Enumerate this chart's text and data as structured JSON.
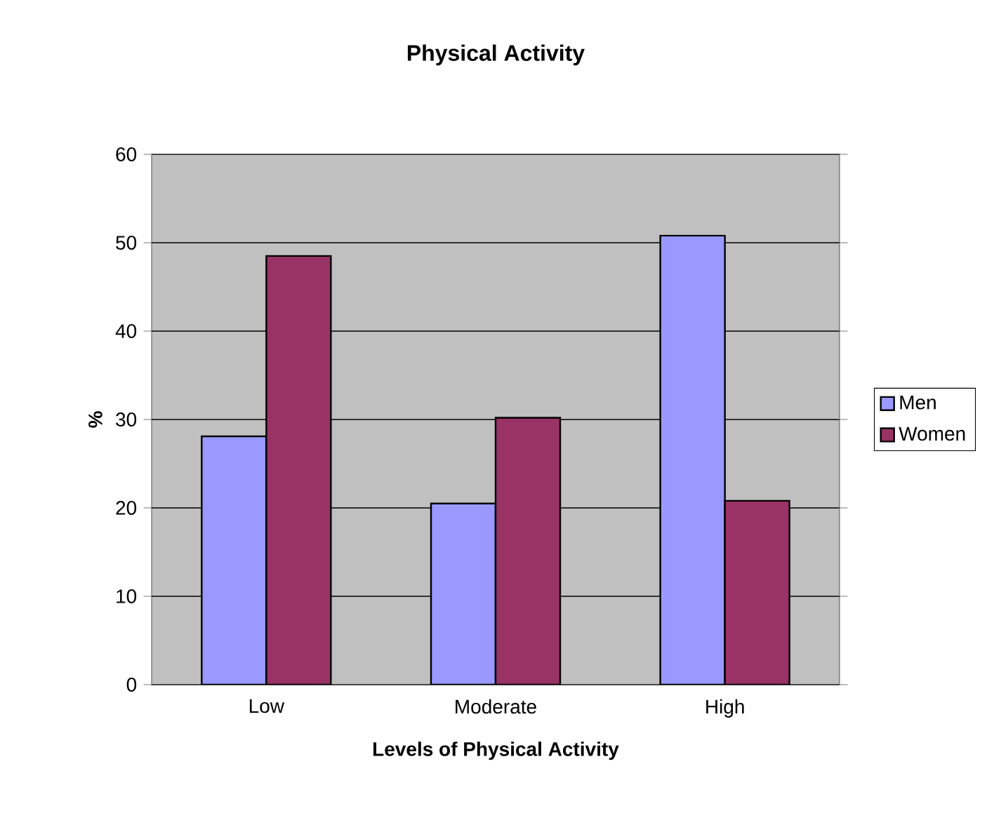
{
  "chart_data": {
    "type": "bar",
    "title": "Physical Activity",
    "xlabel": "Levels of Physical Activity",
    "ylabel": "%",
    "categories": [
      "Low",
      "Moderate",
      "High"
    ],
    "series": [
      {
        "name": "Men",
        "color": "#9999ff",
        "values": [
          28.1,
          20.5,
          50.8
        ]
      },
      {
        "name": "Women",
        "color": "#993366",
        "values": [
          48.5,
          30.2,
          20.8
        ]
      }
    ],
    "ylim": [
      0,
      60
    ],
    "yticks": [
      0,
      10,
      20,
      30,
      40,
      50,
      60
    ],
    "grid": "y",
    "legend": "right"
  }
}
